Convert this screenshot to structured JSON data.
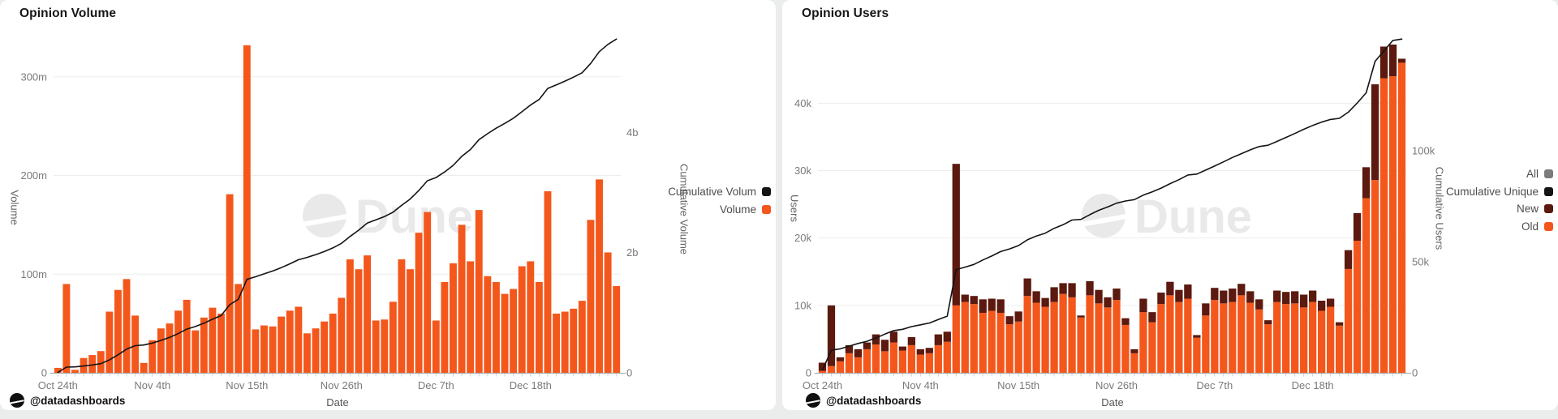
{
  "page": {
    "background": "#ebecec",
    "card_background": "#ffffff"
  },
  "watermark": {
    "text": "Dune",
    "color": "#e9e9e9"
  },
  "attribution": "@datadashboards",
  "colors": {
    "orange": "#f4571c",
    "maroon": "#5b190f",
    "line_black": "#141414",
    "legend_gray": "#7b7b7b",
    "grid": "#ededed",
    "axis_line": "#a6a6a6",
    "tick_text": "#7a7a7a",
    "tick_mark": "#cfcfcf"
  },
  "chart_data": [
    {
      "type": "bar",
      "title": "Opinion Volume",
      "x_label": "Date",
      "grid": true,
      "legend_position": "right",
      "x_tick_labels": [
        "Oct 24th",
        "Nov 4th",
        "Nov 15th",
        "Nov 26th",
        "Dec 7th",
        "Dec 18th"
      ],
      "x_tick_indices": [
        0,
        11,
        22,
        33,
        44,
        55
      ],
      "y_left": {
        "label": "Volume",
        "unit": "m",
        "tick_labels": [
          "0",
          "100m",
          "200m",
          "300m"
        ],
        "tick_values": [
          0,
          100,
          200,
          300
        ],
        "max": 345
      },
      "y_right": {
        "label": "Cumulative Volume",
        "unit": "b",
        "tick_labels": [
          "0",
          "2b",
          "4b"
        ],
        "tick_values": [
          0,
          2000,
          4000
        ]
      },
      "legend": [
        {
          "label": "Cumulative Volum",
          "color": "#141414",
          "series": "cumulative"
        },
        {
          "label": "Volume",
          "color": "#f4571c",
          "series": "bars"
        }
      ],
      "series": [
        {
          "name": "Volume",
          "color": "#f4571c",
          "values_m": [
            5,
            90,
            3,
            15,
            18,
            22,
            62,
            84,
            95,
            58,
            10,
            33,
            45,
            50,
            63,
            74,
            43,
            56,
            66,
            60,
            181,
            90,
            332,
            44,
            48,
            47,
            57,
            63,
            67,
            40,
            45,
            52,
            60,
            76,
            115,
            105,
            119,
            53,
            54,
            72,
            115,
            105,
            142,
            163,
            53,
            92,
            111,
            150,
            113,
            165,
            98,
            92,
            80,
            85,
            108,
            113,
            92,
            184,
            60,
            62,
            65,
            73,
            155,
            196,
            122,
            88
          ]
        }
      ],
      "line": {
        "name": "Cumulative Volume",
        "color": "#141414",
        "derived": "running sum of Volume",
        "end_value_m": 5554
      }
    },
    {
      "type": "bar",
      "stacked": true,
      "title": "Opinion Users",
      "x_label": "Date",
      "grid": true,
      "legend_position": "right",
      "x_tick_labels": [
        "Oct 24th",
        "Nov 4th",
        "Nov 15th",
        "Nov 26th",
        "Dec 7th",
        "Dec 18th"
      ],
      "x_tick_indices": [
        0,
        11,
        22,
        33,
        44,
        55
      ],
      "y_left": {
        "label": "Users",
        "unit": "k",
        "tick_labels": [
          "0",
          "10k",
          "20k",
          "30k",
          "40k"
        ],
        "tick_values": [
          0,
          10,
          20,
          30,
          40
        ],
        "max": 50.5
      },
      "y_right": {
        "label": "Cumulative Users",
        "unit": "k",
        "tick_labels": [
          "0",
          "50k",
          "100k"
        ],
        "tick_values": [
          0,
          50,
          100
        ]
      },
      "legend": [
        {
          "label": "All",
          "color": "#7b7b7b",
          "series": "hidden"
        },
        {
          "label": "Cumulative Unique",
          "color": "#141414",
          "series": "cumulative"
        },
        {
          "label": "New",
          "color": "#5b190f",
          "series": "new"
        },
        {
          "label": "Old",
          "color": "#f4571c",
          "series": "old"
        }
      ],
      "series": [
        {
          "name": "Old",
          "color": "#f4571c",
          "values_k": [
            0.3,
            1.0,
            1.7,
            2.9,
            2.3,
            3.5,
            4.2,
            3.2,
            4.5,
            3.3,
            4.1,
            2.7,
            2.9,
            4.1,
            4.6,
            10.0,
            10.5,
            10.2,
            8.9,
            9.2,
            8.9,
            7.2,
            7.6,
            11.4,
            10.4,
            9.8,
            10.5,
            11.7,
            11.2,
            8.2,
            11.5,
            10.3,
            9.7,
            10.8,
            7.1,
            2.9,
            9.0,
            7.5,
            10.2,
            11.5,
            10.5,
            11.0,
            5.2,
            8.5,
            10.8,
            10.3,
            10.5,
            11.5,
            10.4,
            9.4,
            7.2,
            10.5,
            10.2,
            10.3,
            9.7,
            10.5,
            9.2,
            9.8,
            7.0,
            15.4,
            19.6,
            25.9,
            28.6,
            43.7,
            44.0,
            46.0
          ]
        },
        {
          "name": "New",
          "color": "#5b190f",
          "values_k": [
            1.2,
            9.0,
            0.6,
            1.2,
            1.2,
            1.0,
            1.5,
            1.7,
            1.6,
            0.6,
            1.2,
            0.8,
            0.8,
            1.6,
            1.5,
            21.0,
            1.1,
            1.2,
            2.0,
            1.8,
            2.0,
            1.2,
            1.5,
            2.6,
            1.7,
            1.3,
            2.2,
            1.6,
            2.1,
            0.3,
            2.1,
            2.0,
            1.5,
            1.7,
            1.0,
            0.6,
            2.0,
            1.5,
            1.7,
            2.0,
            1.8,
            2.1,
            0.4,
            1.8,
            1.8,
            1.9,
            2.0,
            1.7,
            1.7,
            1.5,
            0.6,
            1.7,
            1.8,
            1.8,
            1.9,
            1.7,
            1.5,
            1.2,
            0.5,
            2.8,
            4.1,
            4.6,
            14.2,
            4.7,
            4.7,
            0.6
          ]
        }
      ],
      "line": {
        "name": "Cumulative Unique Users",
        "color": "#141414",
        "derived": "running sum of New",
        "end_value_k": 150
      }
    }
  ]
}
